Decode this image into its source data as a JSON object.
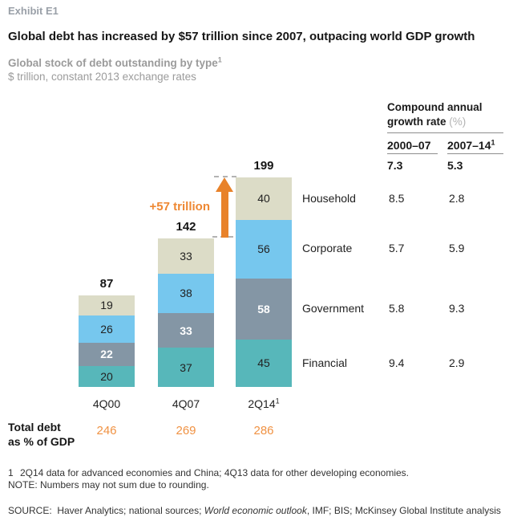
{
  "exhibit_label": "Exhibit E1",
  "title": "Global debt has increased by $57 trillion since 2007, outpacing world GDP growth",
  "chart_data": {
    "type": "bar",
    "stacked": true,
    "title": "Global stock of debt outstanding by type",
    "title_sup": "1",
    "units": "$ trillion, constant 2013 exchange rates",
    "grid": false,
    "legend_position": "right-of-last-bar",
    "categories": [
      {
        "label": "4Q00",
        "sup": ""
      },
      {
        "label": "4Q07",
        "sup": ""
      },
      {
        "label": "2Q14",
        "sup": "1"
      }
    ],
    "series": [
      {
        "name": "Financial",
        "color": "#57b7ba",
        "value_color": "#222222",
        "value_bold": false,
        "values": [
          20,
          37,
          45
        ],
        "cagr": [
          "9.4",
          "2.9"
        ]
      },
      {
        "name": "Government",
        "color": "#8496a5",
        "value_color": "#ffffff",
        "value_bold": true,
        "values": [
          22,
          33,
          58
        ],
        "cagr": [
          "5.8",
          "9.3"
        ]
      },
      {
        "name": "Corporate",
        "color": "#76c7ee",
        "value_color": "#222222",
        "value_bold": false,
        "values": [
          26,
          38,
          56
        ],
        "cagr": [
          "5.7",
          "5.9"
        ]
      },
      {
        "name": "Household",
        "color": "#dcdcc7",
        "value_color": "#222222",
        "value_bold": false,
        "values": [
          19,
          33,
          40
        ],
        "cagr": [
          "8.5",
          "2.8"
        ]
      }
    ],
    "totals": [
      "87",
      "142",
      "199"
    ],
    "annotation": {
      "text": "+57 trillion",
      "from": "4Q07",
      "to": "2Q14",
      "color": "#ee8833"
    }
  },
  "growth_table": {
    "header_line1": "Compound annual",
    "header_line2": "growth rate",
    "header_unit": "(%)",
    "columns": [
      {
        "label": "2000–07",
        "sup": ""
      },
      {
        "label": "2007–14",
        "sup": "1"
      }
    ],
    "total_row": [
      "7.3",
      "5.3"
    ]
  },
  "gdp_row": {
    "label_line1": "Total debt",
    "label_line2": "as % of GDP",
    "values": [
      "246",
      "269",
      "286"
    ]
  },
  "footnote": {
    "marker": "1",
    "text": "2Q14 data for advanced economies and China; 4Q13 data for other developing economies."
  },
  "note": "NOTE: Numbers may not sum due to rounding.",
  "source": {
    "prefix": "SOURCE:  Haver Analytics; national sources; ",
    "italic": "World economic outlook",
    "suffix": ", IMF; BIS; McKinsey Global Institute analysis"
  },
  "colors": {
    "accent_orange_arrow": "#e8822a",
    "accent_orange_text": "#ee8833",
    "accent_orange_gdp": "#f09243",
    "financial_teal": "#57b7ba",
    "government_slate": "#8496a5",
    "corporate_blue": "#76c7ee",
    "household_beige": "#dcdcc7",
    "muted_gray": "#9b9b9b"
  }
}
